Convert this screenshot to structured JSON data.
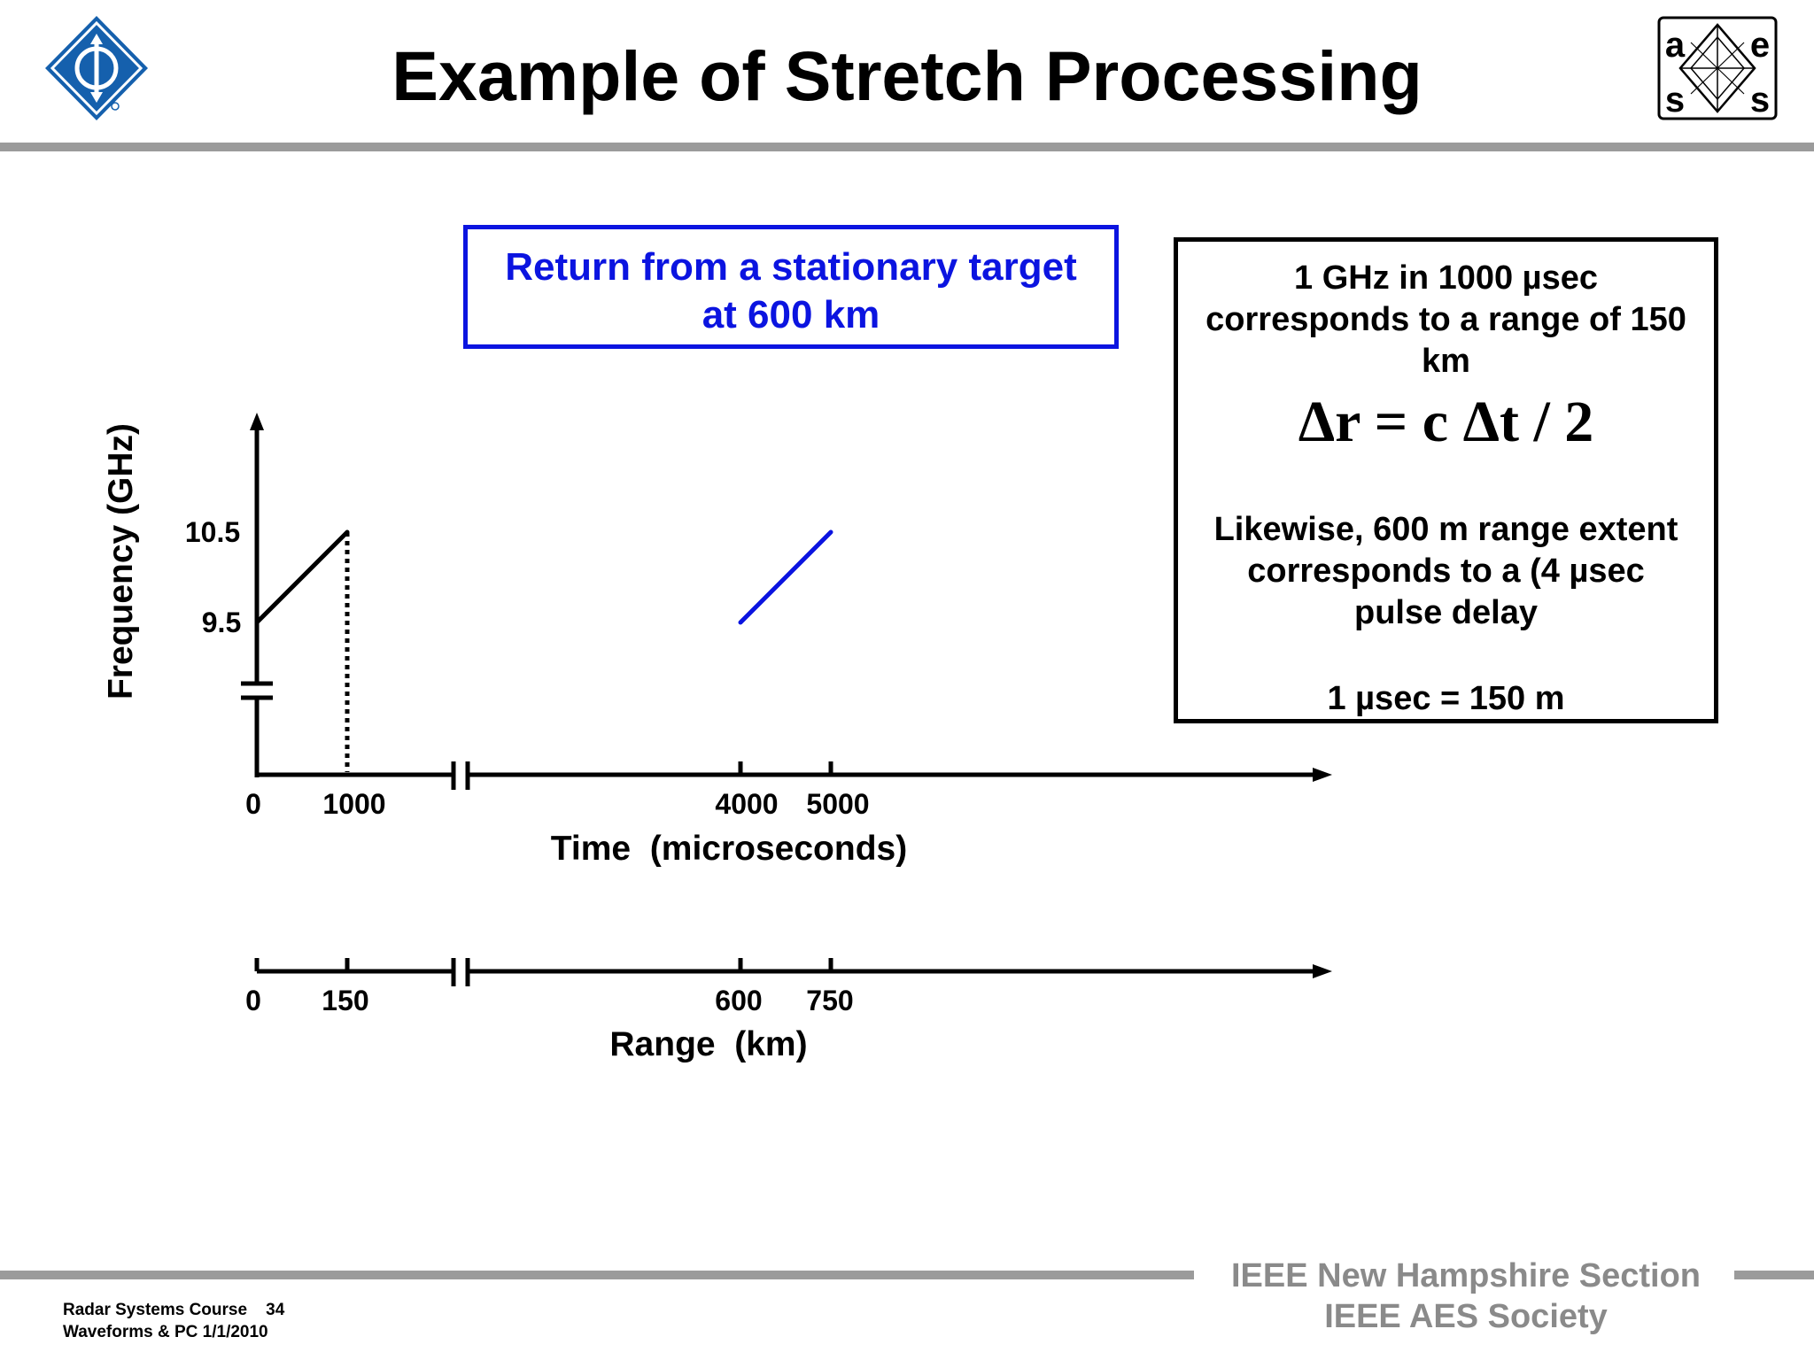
{
  "slide_title": "Example of Stretch Processing",
  "logos": {
    "ieee": "ieee-diamond-logo",
    "aes": "aes-society-logo",
    "aes_letters": [
      "a",
      "e",
      "s",
      "s"
    ]
  },
  "callout": {
    "line1": "Return from a stationary target",
    "line2": "at 600 km",
    "color": "#0b14e0"
  },
  "note": {
    "line1": "1 GHz in 1000 µsec",
    "line2": "corresponds to a range of 150",
    "line3": "km",
    "formula": "Δr = c Δt / 2",
    "line4": "Likewise, 600 m range extent",
    "line5": "corresponds to a (4 µsec",
    "line6": "pulse delay",
    "line7": "1 µsec = 150 m"
  },
  "chart_data": {
    "type": "line",
    "ylabel": "Frequency (GHz)",
    "xlabel": "Time  (microseconds)",
    "x_ticks": [
      "0",
      "1000",
      "4000",
      "5000"
    ],
    "y_ticks": [
      "10.5",
      "9.5"
    ],
    "range_axis": {
      "label": "Range  (km)",
      "ticks": [
        "0",
        "150",
        "600",
        "750"
      ]
    },
    "series": [
      {
        "x": [
          0,
          1000
        ],
        "y": [
          9.5,
          10.5
        ],
        "color": "#000000"
      },
      {
        "x": [
          4000,
          5000
        ],
        "y": [
          9.5,
          10.5
        ],
        "color": "#0b14e0"
      }
    ],
    "axis_breaks": true
  },
  "footer": {
    "course_line1": "Radar Systems Course    34",
    "course_line2": "Waveforms & PC  1/1/2010",
    "org_line1": "IEEE New Hampshire Section",
    "org_line2": "IEEE AES Society"
  }
}
